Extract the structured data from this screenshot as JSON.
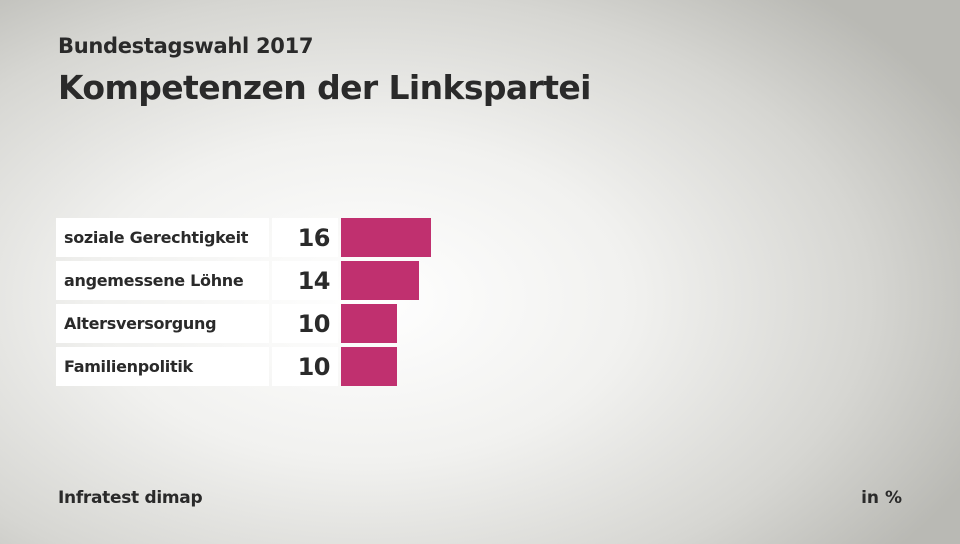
{
  "header": {
    "subtitle": "Bundestagswahl 2017",
    "title": "Kompetenzen der Linkspartei"
  },
  "footer": {
    "source": "Infratest dimap",
    "unit": "in %"
  },
  "colors": {
    "bar": "#c0306f"
  },
  "chart_data": {
    "type": "bar",
    "orientation": "horizontal",
    "title": "Kompetenzen der Linkspartei",
    "categories": [
      "soziale Gerechtigkeit",
      "angemessene Löhne",
      "Altersversorgung",
      "Familienpolitik"
    ],
    "values": [
      16,
      14,
      10,
      10
    ],
    "xlabel": "",
    "ylabel": "",
    "unit": "in %",
    "xlim": [
      0,
      100
    ]
  }
}
